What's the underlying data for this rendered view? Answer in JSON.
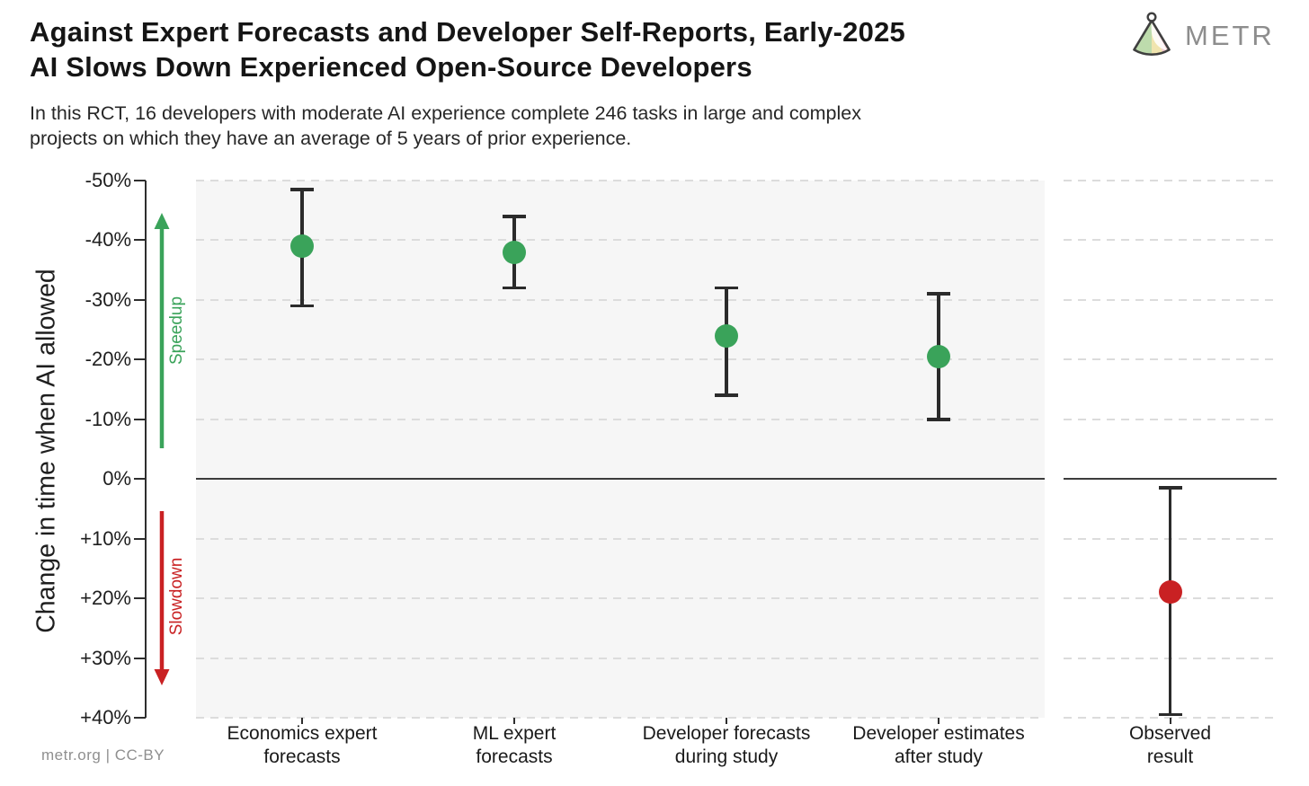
{
  "logo": {
    "text": "METR",
    "icon": "metr-fan-logo"
  },
  "footer": {
    "credit": "metr.org  |  CC-BY"
  },
  "colors": {
    "green": "#3aa35a",
    "red": "#c92123",
    "errorbar": "#2b2b2b",
    "gridline": "#dcdcdc",
    "panel_bg": "#f6f6f6",
    "zero_line": "#3c3c3c",
    "axis": "#2e2e2e"
  },
  "chart_data": {
    "type": "scatter",
    "title": "Against Expert Forecasts and Developer Self-Reports, Early-2025\nAI Slows Down Experienced Open-Source Developers",
    "subtitle": "In this RCT, 16 developers with moderate AI experience complete 246 tasks in large and complex\nprojects on which they have an average of 5 years of prior experience.",
    "ylabel": "Change in time when AI allowed",
    "xlabel": "",
    "ylim_top": -50,
    "ylim_bottom": 40,
    "grid": "horizontal-dashed",
    "zero_line": 0,
    "legend": "none",
    "yticks": [
      {
        "value": -50,
        "label": "-50%"
      },
      {
        "value": -40,
        "label": "-40%"
      },
      {
        "value": -30,
        "label": "-30%"
      },
      {
        "value": -20,
        "label": "-20%"
      },
      {
        "value": -10,
        "label": "-10%"
      },
      {
        "value": 0,
        "label": "0%"
      },
      {
        "value": 10,
        "label": "+10%"
      },
      {
        "value": 20,
        "label": "+20%"
      },
      {
        "value": 30,
        "label": "+30%"
      },
      {
        "value": 40,
        "label": "+40%"
      }
    ],
    "direction_annotations": [
      {
        "label": "Speedup",
        "direction": "up",
        "color_key": "green"
      },
      {
        "label": "Slowdown",
        "direction": "down",
        "color_key": "red"
      }
    ],
    "series": [
      {
        "category": "Economics expert\nforecasts",
        "mean": -39,
        "ci_low": -48.5,
        "ci_high": -29,
        "color_key": "green",
        "facet": 0
      },
      {
        "category": "ML expert\nforecasts",
        "mean": -38,
        "ci_low": -44,
        "ci_high": -32,
        "color_key": "green",
        "facet": 0
      },
      {
        "category": "Developer forecasts\nduring study",
        "mean": -24,
        "ci_low": -32,
        "ci_high": -14,
        "color_key": "green",
        "facet": 0
      },
      {
        "category": "Developer estimates\nafter study",
        "mean": -20.5,
        "ci_low": -31,
        "ci_high": -10,
        "color_key": "green",
        "facet": 0
      },
      {
        "category": "Observed\nresult",
        "mean": 19,
        "ci_low": 1.5,
        "ci_high": 39.5,
        "color_key": "red",
        "facet": 1
      }
    ]
  }
}
